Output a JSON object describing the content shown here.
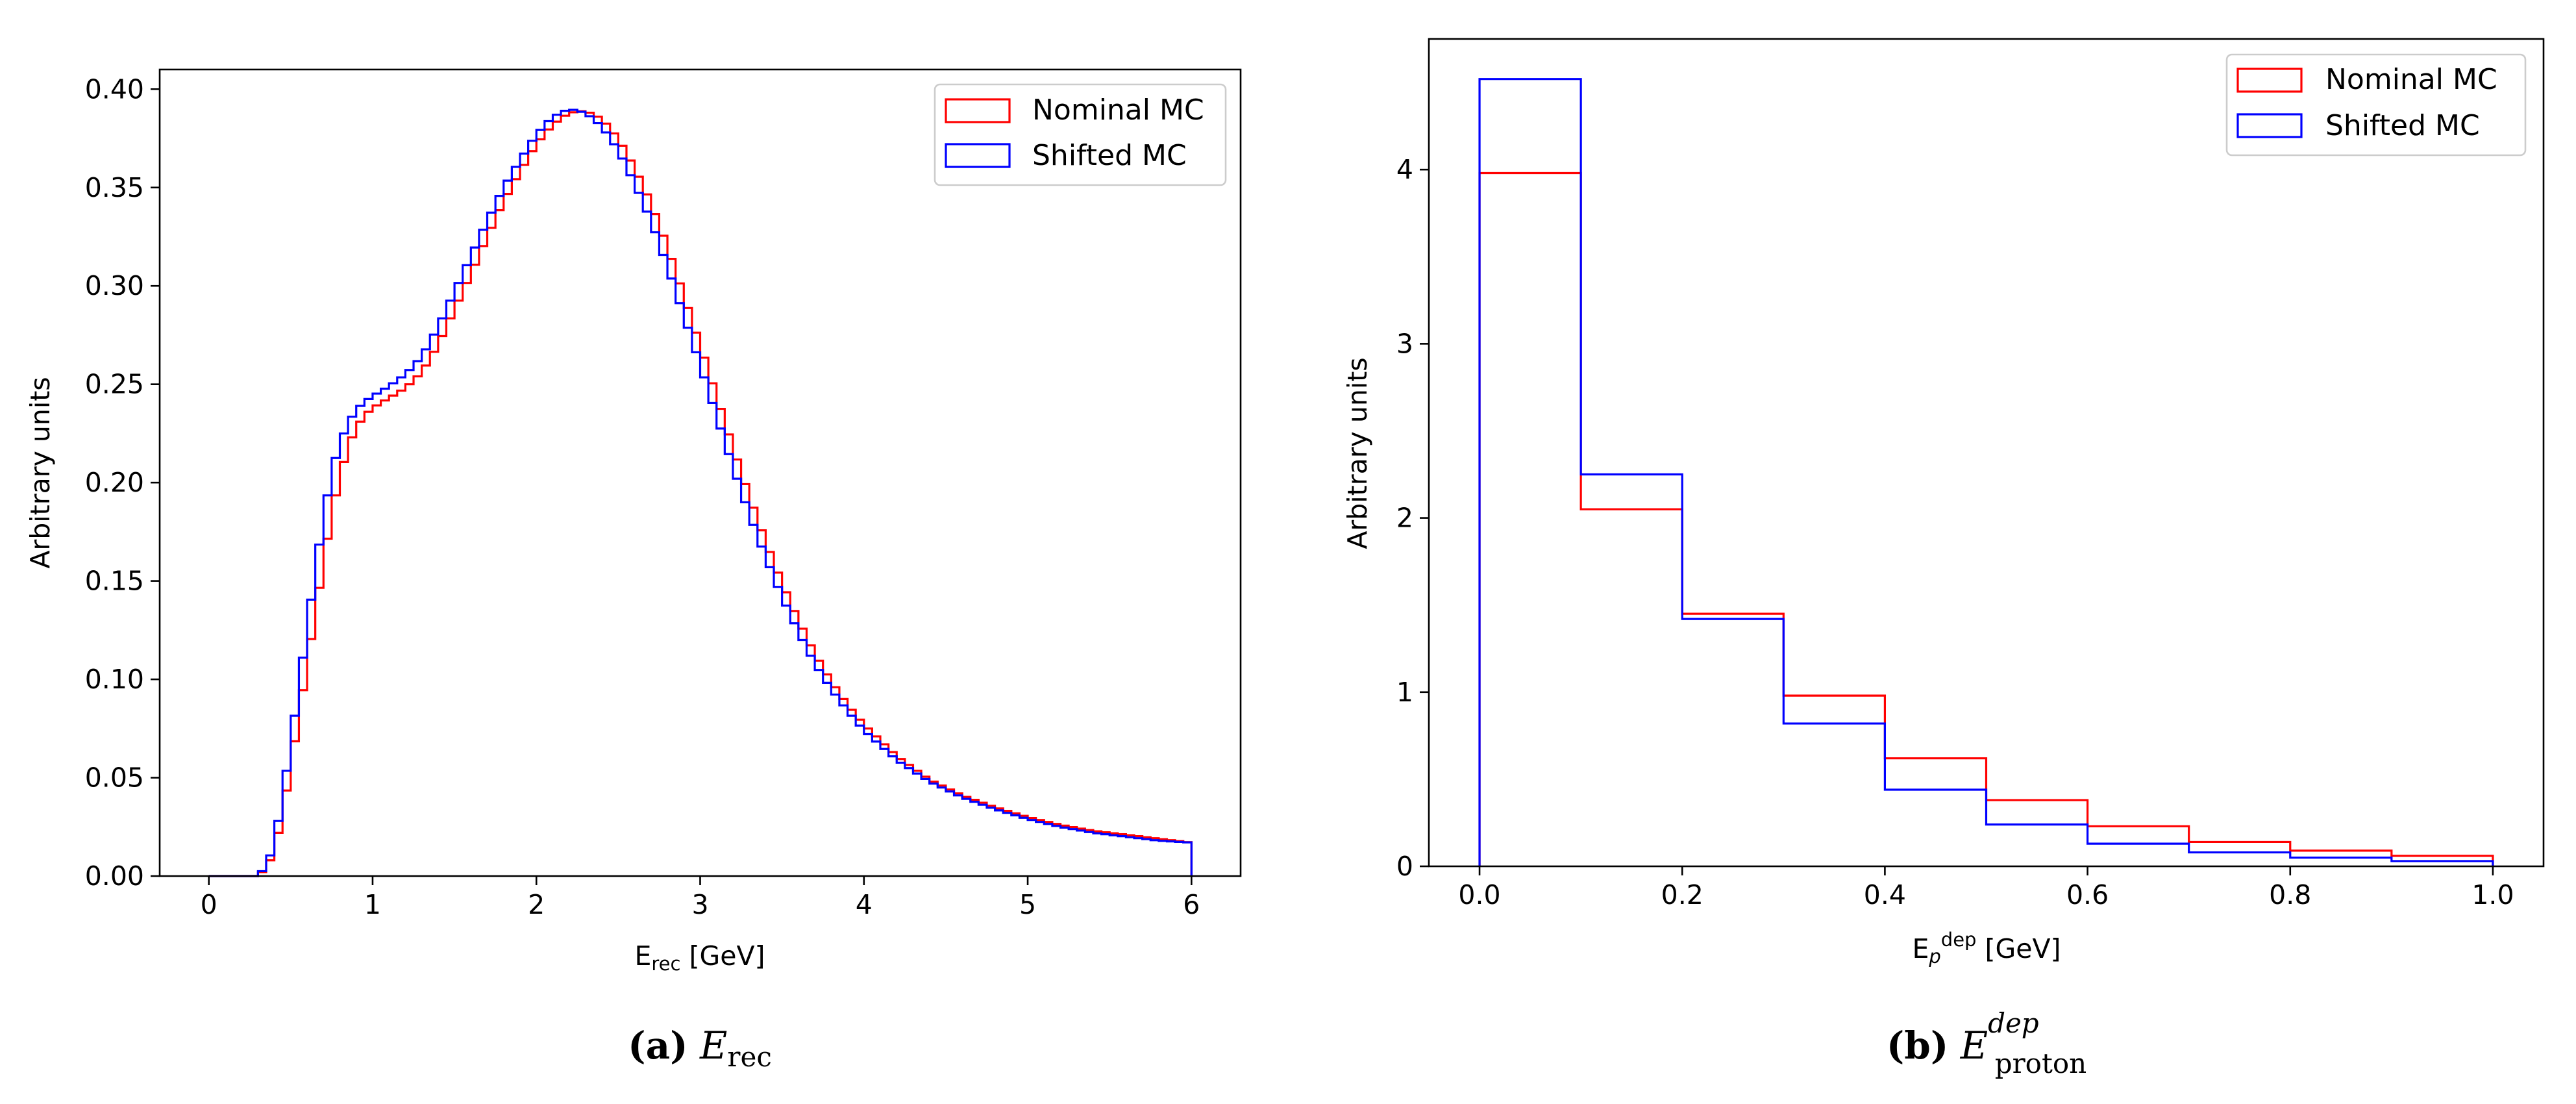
{
  "colors": {
    "nominal": "#ff0000",
    "shifted": "#0000ff"
  },
  "chart_data": [
    {
      "type": "histogram-step",
      "panel": "a",
      "xlabel_main": "E",
      "xlabel_sub": "rec",
      "xlabel_unit": " [GeV]",
      "ylabel": "Arbitrary units",
      "xlim": [
        -0.3,
        6.3
      ],
      "ylim": [
        0,
        0.41
      ],
      "xticks": [
        0,
        1,
        2,
        3,
        4,
        5,
        6
      ],
      "xtick_labels": [
        "0",
        "1",
        "2",
        "3",
        "4",
        "5",
        "6"
      ],
      "yticks": [
        0.0,
        0.05,
        0.1,
        0.15,
        0.2,
        0.25,
        0.3,
        0.35,
        0.4
      ],
      "ytick_labels": [
        "0.00",
        "0.05",
        "0.10",
        "0.15",
        "0.20",
        "0.25",
        "0.30",
        "0.35",
        "0.40"
      ],
      "legend": {
        "location": "top-right",
        "entries": [
          "Nominal MC",
          "Shifted MC"
        ]
      },
      "bin_edges_range": [
        0,
        6
      ],
      "bin_width": 0.05,
      "series": [
        {
          "name": "Nominal MC",
          "color_key": "nominal",
          "anchors": [
            [
              0.0,
              0.0
            ],
            [
              0.3,
              0.0
            ],
            [
              0.35,
              0.004
            ],
            [
              0.4,
              0.012
            ],
            [
              0.45,
              0.032
            ],
            [
              0.5,
              0.055
            ],
            [
              0.55,
              0.082
            ],
            [
              0.6,
              0.107
            ],
            [
              0.65,
              0.134
            ],
            [
              0.7,
              0.159
            ],
            [
              0.75,
              0.184
            ],
            [
              0.8,
              0.203
            ],
            [
              0.85,
              0.218
            ],
            [
              0.9,
              0.228
            ],
            [
              0.95,
              0.234
            ],
            [
              1.0,
              0.238
            ],
            [
              1.1,
              0.243
            ],
            [
              1.2,
              0.248
            ],
            [
              1.3,
              0.256
            ],
            [
              1.4,
              0.27
            ],
            [
              1.5,
              0.288
            ],
            [
              1.6,
              0.306
            ],
            [
              1.7,
              0.325
            ],
            [
              1.8,
              0.343
            ],
            [
              1.9,
              0.358
            ],
            [
              2.0,
              0.372
            ],
            [
              2.1,
              0.382
            ],
            [
              2.2,
              0.388
            ],
            [
              2.3,
              0.389
            ],
            [
              2.4,
              0.385
            ],
            [
              2.5,
              0.375
            ],
            [
              2.6,
              0.36
            ],
            [
              2.7,
              0.342
            ],
            [
              2.8,
              0.32
            ],
            [
              2.9,
              0.295
            ],
            [
              3.0,
              0.27
            ],
            [
              3.1,
              0.244
            ],
            [
              3.2,
              0.218
            ],
            [
              3.3,
              0.193
            ],
            [
              3.4,
              0.17
            ],
            [
              3.5,
              0.149
            ],
            [
              3.6,
              0.13
            ],
            [
              3.7,
              0.113
            ],
            [
              3.8,
              0.099
            ],
            [
              3.9,
              0.087
            ],
            [
              4.0,
              0.077
            ],
            [
              4.2,
              0.061
            ],
            [
              4.4,
              0.049
            ],
            [
              4.6,
              0.041
            ],
            [
              4.8,
              0.035
            ],
            [
              5.0,
              0.03
            ],
            [
              5.2,
              0.026
            ],
            [
              5.4,
              0.023
            ],
            [
              5.6,
              0.021
            ],
            [
              5.8,
              0.019
            ],
            [
              6.0,
              0.017
            ]
          ]
        },
        {
          "name": "Shifted MC",
          "color_key": "shifted",
          "anchors": [
            [
              0.0,
              0.0
            ],
            [
              0.3,
              0.0
            ],
            [
              0.35,
              0.005
            ],
            [
              0.4,
              0.016
            ],
            [
              0.45,
              0.04
            ],
            [
              0.5,
              0.067
            ],
            [
              0.55,
              0.096
            ],
            [
              0.6,
              0.126
            ],
            [
              0.65,
              0.155
            ],
            [
              0.7,
              0.182
            ],
            [
              0.75,
              0.205
            ],
            [
              0.8,
              0.22
            ],
            [
              0.85,
              0.23
            ],
            [
              0.9,
              0.237
            ],
            [
              0.95,
              0.241
            ],
            [
              1.0,
              0.244
            ],
            [
              1.1,
              0.249
            ],
            [
              1.2,
              0.255
            ],
            [
              1.3,
              0.264
            ],
            [
              1.4,
              0.279
            ],
            [
              1.5,
              0.297
            ],
            [
              1.6,
              0.315
            ],
            [
              1.7,
              0.333
            ],
            [
              1.8,
              0.35
            ],
            [
              1.9,
              0.364
            ],
            [
              2.0,
              0.377
            ],
            [
              2.1,
              0.386
            ],
            [
              2.2,
              0.39
            ],
            [
              2.3,
              0.388
            ],
            [
              2.4,
              0.381
            ],
            [
              2.5,
              0.369
            ],
            [
              2.6,
              0.352
            ],
            [
              2.7,
              0.333
            ],
            [
              2.8,
              0.31
            ],
            [
              2.9,
              0.285
            ],
            [
              3.0,
              0.26
            ],
            [
              3.1,
              0.234
            ],
            [
              3.2,
              0.208
            ],
            [
              3.3,
              0.184
            ],
            [
              3.4,
              0.162
            ],
            [
              3.5,
              0.142
            ],
            [
              3.6,
              0.124
            ],
            [
              3.7,
              0.108
            ],
            [
              3.8,
              0.095
            ],
            [
              3.9,
              0.084
            ],
            [
              4.0,
              0.074
            ],
            [
              4.2,
              0.059
            ],
            [
              4.4,
              0.048
            ],
            [
              4.6,
              0.04
            ],
            [
              4.8,
              0.034
            ],
            [
              5.0,
              0.029
            ],
            [
              5.2,
              0.025
            ],
            [
              5.4,
              0.022
            ],
            [
              5.6,
              0.02
            ],
            [
              5.8,
              0.018
            ],
            [
              6.0,
              0.017
            ]
          ]
        }
      ],
      "caption": {
        "label": "(a)",
        "symbol": "E",
        "subscript": "rec"
      }
    },
    {
      "type": "histogram-step",
      "panel": "b",
      "xlabel_main": "E",
      "xlabel_sub": "p",
      "xlabel_sup": "dep",
      "xlabel_unit": " [GeV]",
      "ylabel": "Arbitrary units",
      "xlim": [
        -0.05,
        1.05
      ],
      "ylim": [
        0,
        4.75
      ],
      "xticks": [
        0.0,
        0.2,
        0.4,
        0.6,
        0.8,
        1.0
      ],
      "xtick_labels": [
        "0.0",
        "0.2",
        "0.4",
        "0.6",
        "0.8",
        "1.0"
      ],
      "yticks": [
        0,
        1,
        2,
        3,
        4
      ],
      "ytick_labels": [
        "0",
        "1",
        "2",
        "3",
        "4"
      ],
      "legend": {
        "location": "top-right",
        "entries": [
          "Nominal MC",
          "Shifted MC"
        ]
      },
      "bin_edges": [
        0.0,
        0.1,
        0.2,
        0.3,
        0.4,
        0.5,
        0.6,
        0.7,
        0.8,
        0.9,
        1.0
      ],
      "series": [
        {
          "name": "Nominal MC",
          "color_key": "nominal",
          "values": [
            3.98,
            2.05,
            1.45,
            0.98,
            0.62,
            0.38,
            0.23,
            0.14,
            0.09,
            0.06
          ]
        },
        {
          "name": "Shifted MC",
          "color_key": "shifted",
          "values": [
            4.52,
            2.25,
            1.42,
            0.82,
            0.44,
            0.24,
            0.13,
            0.08,
            0.05,
            0.03
          ]
        }
      ],
      "caption": {
        "label": "(b)",
        "symbol": "E",
        "superscript": "dep",
        "subscript": "proton"
      }
    }
  ]
}
